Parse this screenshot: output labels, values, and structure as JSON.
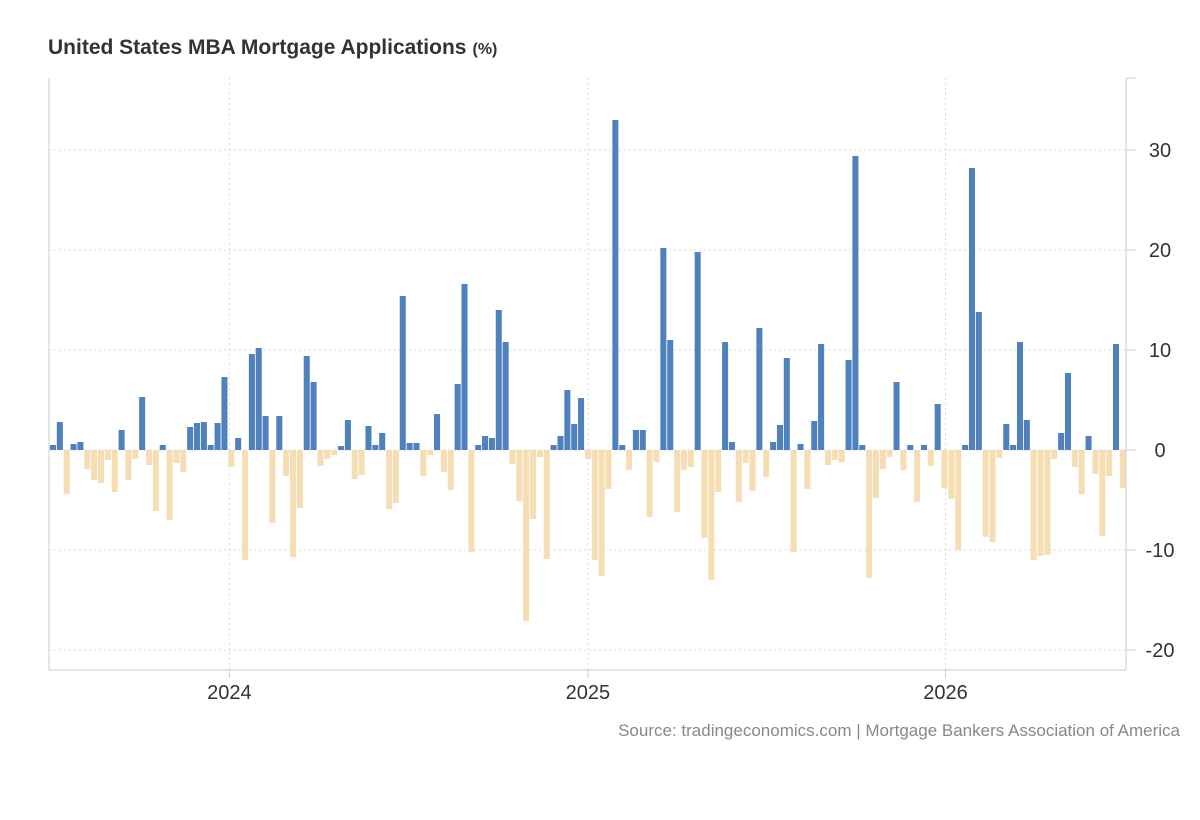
{
  "header": {
    "title": "United States MBA Mortgage Applications",
    "unit": "(%)"
  },
  "source": "Source: tradingeconomics.com | Mortgage Bankers Association of America",
  "colors": {
    "positive": "#4f81bd",
    "negative": "#f5deb3",
    "grid": "#d9d9d9"
  },
  "chart_data": {
    "type": "bar",
    "title": "United States MBA Mortgage Applications",
    "unit": "(%)",
    "ylim": [
      -22,
      37
    ],
    "yticks": [
      30,
      20,
      10,
      0,
      -10,
      -20
    ],
    "xticks": [
      "2024",
      "2025",
      "2026"
    ],
    "grid": true,
    "x_start": "2023-07-05",
    "x_end": "2026-06-24",
    "interval": "weekly",
    "values": [
      0.5,
      2.8,
      -4.4,
      0.6,
      0.8,
      -1.9,
      -3.0,
      -3.3,
      -1.0,
      -4.2,
      2.0,
      -3.0,
      -0.9,
      5.3,
      -1.5,
      -6.1,
      0.5,
      -7.0,
      -1.3,
      -2.2,
      2.3,
      2.7,
      2.8,
      0.5,
      2.7,
      7.3,
      -1.7,
      1.2,
      -11.0,
      9.6,
      10.2,
      3.4,
      -7.3,
      3.4,
      -2.6,
      -10.7,
      -5.8,
      9.4,
      6.8,
      -1.6,
      -0.9,
      -0.5,
      0.4,
      3.0,
      -2.9,
      -2.5,
      2.4,
      0.5,
      1.7,
      -5.9,
      -5.3,
      15.4,
      0.7,
      0.7,
      -2.6,
      -0.5,
      3.6,
      -2.2,
      -4.0,
      6.6,
      16.6,
      -10.2,
      0.5,
      1.4,
      1.2,
      14.0,
      10.8,
      -1.4,
      -5.1,
      -17.1,
      -6.9,
      -0.7,
      -10.9,
      0.5,
      1.4,
      6.0,
      2.6,
      5.2,
      -0.9,
      -11.0,
      -12.6,
      -3.9,
      33.0,
      0.5,
      -2.0,
      2.0,
      2.0,
      -6.7,
      -1.2,
      20.2,
      11.0,
      -6.2,
      -2.0,
      -1.7,
      19.8,
      -8.8,
      -13.0,
      -4.2,
      10.8,
      0.8,
      -5.2,
      -1.3,
      -4.1,
      12.2,
      -2.7,
      0.8,
      2.5,
      9.2,
      -10.2,
      0.6,
      -3.9,
      2.9,
      10.6,
      -1.5,
      -1.0,
      -1.2,
      9.0,
      29.4,
      0.5,
      -12.8,
      -4.8,
      -1.9,
      -0.7,
      6.8,
      -2.0,
      0.5,
      -5.2,
      0.5,
      -1.6,
      4.6,
      -3.8,
      -4.9,
      -10.0,
      0.5,
      28.2,
      13.8,
      -8.7,
      -9.2,
      -0.8,
      2.6,
      0.5,
      10.8,
      3.0,
      -11.0,
      -10.6,
      -10.5,
      -0.9,
      1.7,
      7.7,
      -1.7,
      -4.4,
      1.4,
      -2.4,
      -8.6,
      -2.6,
      10.6,
      -3.8
    ]
  }
}
